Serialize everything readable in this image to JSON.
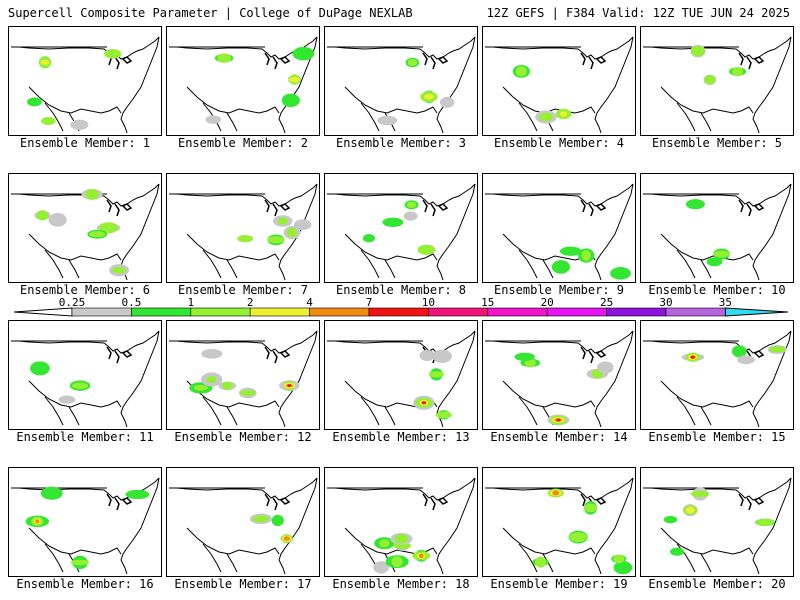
{
  "header": {
    "left_title": "Supercell Composite Parameter | College of DuPage NEXLAB",
    "right_title": "12Z GEFS | F384 Valid: 12Z TUE JUN 24 2025"
  },
  "panels": [
    {
      "label": "Ensemble Member: 1"
    },
    {
      "label": "Ensemble Member: 2"
    },
    {
      "label": "Ensemble Member: 3"
    },
    {
      "label": "Ensemble Member: 4"
    },
    {
      "label": "Ensemble Member: 5"
    },
    {
      "label": "Ensemble Member: 6"
    },
    {
      "label": "Ensemble Member: 7"
    },
    {
      "label": "Ensemble Member: 8"
    },
    {
      "label": "Ensemble Member: 9"
    },
    {
      "label": "Ensemble Member: 10"
    },
    {
      "label": "Ensemble Member: 11"
    },
    {
      "label": "Ensemble Member: 12"
    },
    {
      "label": "Ensemble Member: 13"
    },
    {
      "label": "Ensemble Member: 14"
    },
    {
      "label": "Ensemble Member: 15"
    },
    {
      "label": "Ensemble Member: 16"
    },
    {
      "label": "Ensemble Member: 17"
    },
    {
      "label": "Ensemble Member: 18"
    },
    {
      "label": "Ensemble Member: 19"
    },
    {
      "label": "Ensemble Member: 20"
    }
  ],
  "legend": {
    "thresholds": [
      "0.25",
      "0.5",
      "1",
      "2",
      "4",
      "7",
      "10",
      "15",
      "20",
      "25",
      "30",
      "35"
    ],
    "colors": [
      "#c8c8c8",
      "#32e632",
      "#96f032",
      "#f0f032",
      "#f08c14",
      "#f01414",
      "#f01478",
      "#f014c8",
      "#e614f0",
      "#8c14dc",
      "#b464dc",
      "#32dcf0"
    ]
  }
}
